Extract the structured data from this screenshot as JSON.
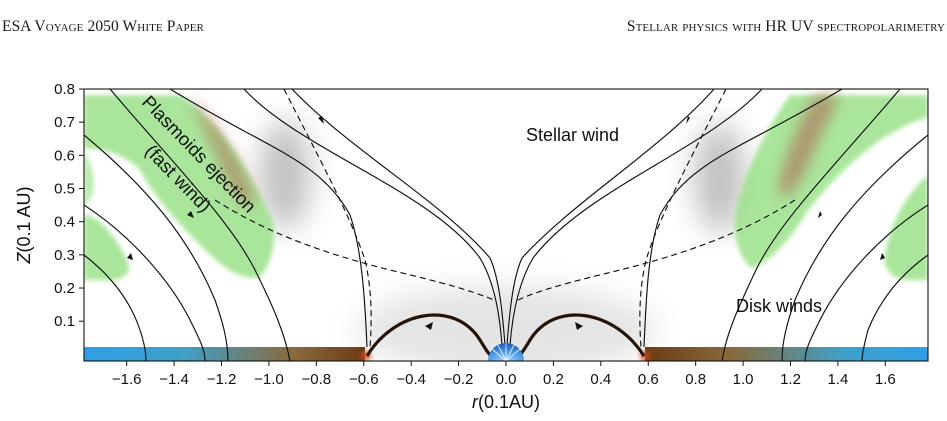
{
  "header": {
    "left": "ESA Voyage 2050 White Paper",
    "right": "Stellar physics with HR UV spectropolarimetry"
  },
  "figure": {
    "xlabel_var": "r",
    "xlabel_unit": "(0.1AU)",
    "ylabel_var": "Z",
    "ylabel_unit": "(0.1 AU)",
    "annotations": {
      "stellar_wind": "Stellar wind",
      "disk_winds": "Disk winds",
      "plasmoids": "Plasmoids ejection",
      "fast_wind": "(fast wind)"
    },
    "x_ticks": [
      "−1.6",
      "−1.4",
      "−1.2",
      "−1.0",
      "−0.8",
      "−0.6",
      "−0.4",
      "−0.2",
      "0.0",
      "0.2",
      "0.4",
      "0.6",
      "0.8",
      "1.0",
      "1.2",
      "1.4",
      "1.6"
    ],
    "x_tick_values": [
      -1.6,
      -1.4,
      -1.2,
      -1.0,
      -0.8,
      -0.6,
      -0.4,
      -0.2,
      0.0,
      0.2,
      0.4,
      0.6,
      0.8,
      1.0,
      1.2,
      1.4,
      1.6
    ],
    "y_ticks": [
      "0.1",
      "0.2",
      "0.3",
      "0.4",
      "0.5",
      "0.6",
      "0.7",
      "0.8"
    ],
    "y_tick_values": [
      0.1,
      0.2,
      0.3,
      0.4,
      0.5,
      0.6,
      0.7,
      0.8
    ],
    "xlim": [
      -1.78,
      1.78
    ],
    "ylim": [
      -0.02,
      0.8
    ],
    "colors": {
      "plasmoid_green": "#9be28a",
      "plasmoid_red": "#b05a4a",
      "disk_blue": "#2f9fe8",
      "disk_brown": "#6b3c14",
      "field_lines": "#111111"
    }
  }
}
